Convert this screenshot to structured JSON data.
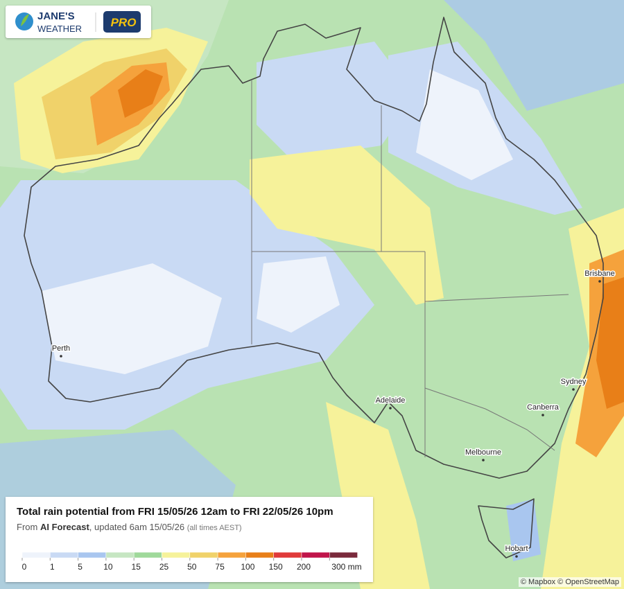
{
  "logo": {
    "brand_top": "JANE'S",
    "brand_bottom": "WEATHER",
    "badge": "PRO"
  },
  "cities": [
    {
      "name": "Perth"
    },
    {
      "name": "Adelaide"
    },
    {
      "name": "Melbourne"
    },
    {
      "name": "Canberra"
    },
    {
      "name": "Sydney"
    },
    {
      "name": "Brisbane"
    },
    {
      "name": "Hobart"
    }
  ],
  "legend": {
    "title": "Total rain potential from FRI 15/05/26 12am to FRI 22/05/26 10pm",
    "subtitle_prefix": "From",
    "subtitle_source": "AI Forecast",
    "subtitle_updated": ", updated 6am 15/05/26",
    "subtitle_note": "(all times AEST)",
    "ticks": [
      "0",
      "1",
      "5",
      "10",
      "15",
      "25",
      "50",
      "75",
      "100",
      "150",
      "200",
      "300 mm"
    ],
    "colors": [
      "#eef3fb",
      "#c9daf4",
      "#a9c6ef",
      "#c6e6c2",
      "#9fd99a",
      "#f6f29a",
      "#f0d26a",
      "#f5a23c",
      "#e87f18",
      "#e03a3a",
      "#c0144a",
      "#7a2a3c"
    ]
  },
  "attribution": "© Mapbox © OpenStreetMap"
}
